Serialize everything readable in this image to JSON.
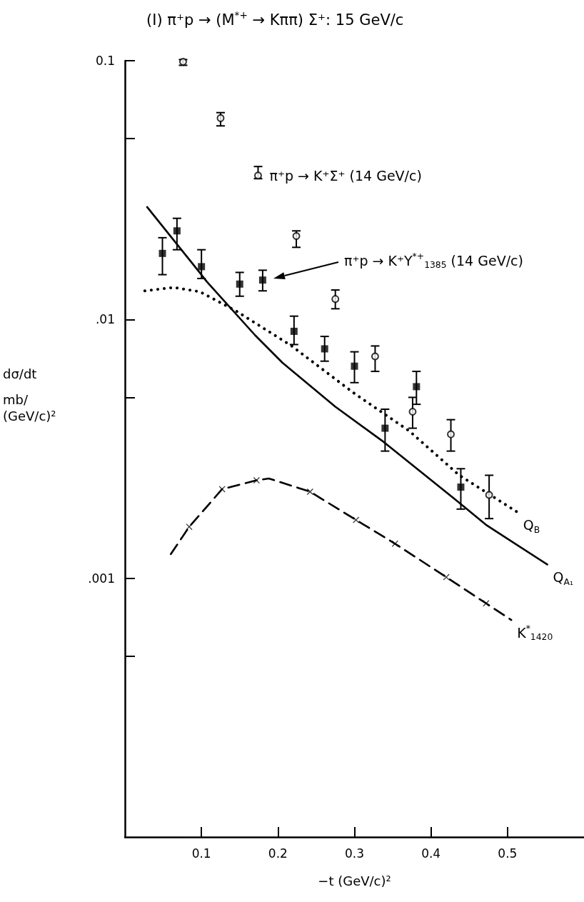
{
  "chart_data": {
    "type": "scatter",
    "title": "(I) π⁺p → (M$^{*+}$ → Kππ) Σ⁺: 15 GeV/c",
    "xlabel": "−t (GeV/c)²",
    "ylabel": "dσ/dt\n\nmb/\n(GeV/c)²",
    "xlim": [
      0,
      0.6
    ],
    "xticks": [
      0.1,
      0.2,
      0.3,
      0.4,
      0.5
    ],
    "ylim": [
      0.0001,
      0.1
    ],
    "yticks": [
      0.1,
      {
        "value": 0.05,
        "label": null
      },
      {
        "value": 0.01,
        "label": ".01"
      },
      {
        "value": 0.005,
        "label": null
      },
      {
        "value": 0.001,
        "label": ".001"
      },
      {
        "value": 0.0005,
        "label": null
      }
    ],
    "log": "y",
    "annotations": [
      {
        "text": "π⁺p → K⁺Σ⁺ (14 GeV/c)",
        "x": 0.174,
        "y": 0.036
      },
      "π⁺p → K⁺Y$^{*+}$$_{1385}$ (14 GeV/c)"
    ],
    "series": [
      {
        "type": "line",
        "name": "K$^{*}$$_{1420}$",
        "color": "#000000",
        "marker": "none",
        "line_style": "dashed",
        "x": [
          0.06,
          0.084,
          0.127,
          0.172,
          0.188,
          0.242,
          0.302,
          0.353,
          0.42,
          0.472,
          0.505
        ],
        "values": [
          0.00124,
          0.00158,
          0.00221,
          0.00239,
          0.00243,
          0.00216,
          0.00168,
          0.00136,
          0.00101,
          0.0008,
          0.00069
        ]
      },
      {
        "type": "line",
        "name": "Q$_{A₁}$",
        "color": "#000000",
        "marker": "none",
        "line_style": "solid",
        "x": [
          0.029,
          0.096,
          0.107,
          0.17,
          0.206,
          0.275,
          0.336,
          0.433,
          0.473,
          0.552
        ],
        "values": [
          0.0272,
          0.0154,
          0.014,
          0.0087,
          0.0068,
          0.0046,
          0.0034,
          0.002,
          0.0016,
          0.00113
        ]
      },
      {
        "type": "line",
        "name": "Q$_{B}$",
        "color": "#000000",
        "marker": "none",
        "line_style": "dotted",
        "x": [
          0.026,
          0.064,
          0.098,
          0.145,
          0.218,
          0.299,
          0.372,
          0.437,
          0.513
        ],
        "values": [
          0.0129,
          0.0133,
          0.0128,
          0.0108,
          0.0079,
          0.0052,
          0.0037,
          0.0025,
          0.0018
        ]
      },
      {
        "color": "#000000",
        "marker": "cross",
        "x": [
          0.084,
          0.127,
          0.172,
          0.242,
          0.302,
          0.353,
          0.42,
          0.472
        ],
        "values": [
          0.00158,
          0.00221,
          0.00239,
          0.00216,
          0.00168,
          0.00136,
          0.00101,
          0.0008
        ]
      },
      {
        "color": "#000000",
        "marker": "circle",
        "x": [
          0.076,
          0.125,
          0.174,
          0.224,
          0.275,
          0.327,
          0.376,
          0.426,
          0.476
        ],
        "values": [
          0.099,
          0.06,
          0.036,
          0.021,
          0.012,
          0.0072,
          0.0044,
          0.0036,
          0.0021
        ],
        "errors": [
          [
            0.096,
            0.101
          ],
          [
            0.056,
            0.063
          ],
          [
            0.035,
            0.039
          ],
          [
            0.019,
            0.022
          ],
          [
            0.011,
            0.013
          ],
          [
            0.0063,
            0.0079
          ],
          [
            0.0038,
            0.005
          ],
          [
            0.0031,
            0.0041
          ],
          [
            0.0017,
            0.0025
          ]
        ]
      },
      {
        "color": "#000000",
        "marker": "square",
        "x": [
          0.049,
          0.068,
          0.1,
          0.15,
          0.18,
          0.221,
          0.261,
          0.3,
          0.34,
          0.381,
          0.439
        ],
        "values": [
          0.018,
          0.022,
          0.016,
          0.0137,
          0.0142,
          0.009,
          0.0077,
          0.0066,
          0.0038,
          0.0055,
          0.00225
        ],
        "errors": [
          [
            0.0149,
            0.0207
          ],
          [
            0.0186,
            0.0246
          ],
          [
            0.0144,
            0.0186
          ],
          [
            0.0123,
            0.0152
          ],
          [
            0.0129,
            0.0155
          ],
          [
            0.008,
            0.0103
          ],
          [
            0.0069,
            0.0086
          ],
          [
            0.0057,
            0.0075
          ],
          [
            0.0031,
            0.0045
          ],
          [
            0.0047,
            0.0063
          ],
          [
            0.00185,
            0.00265
          ]
        ]
      }
    ]
  }
}
